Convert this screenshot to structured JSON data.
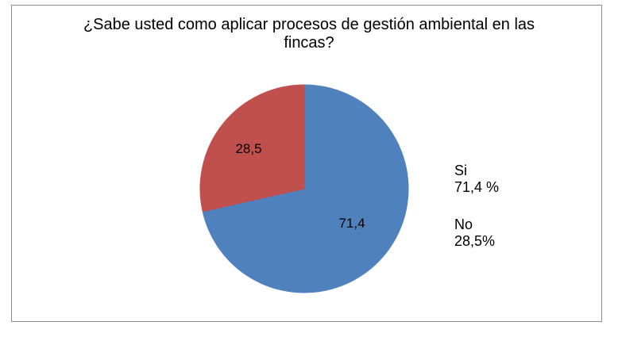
{
  "chart_data": {
    "type": "pie",
    "title_lines": [
      "¿Sabe usted como aplicar procesos de gestión ambiental en las",
      "fincas?"
    ],
    "slices": [
      {
        "name": "Si",
        "value": 71.4,
        "data_label": "71,4",
        "legend_value": "71,4 %",
        "color": "#4f81bd"
      },
      {
        "name": "No",
        "value": 28.5,
        "data_label": "28,5",
        "legend_value": "28,5%",
        "color": "#c0504d"
      }
    ],
    "legend_position": "right"
  }
}
